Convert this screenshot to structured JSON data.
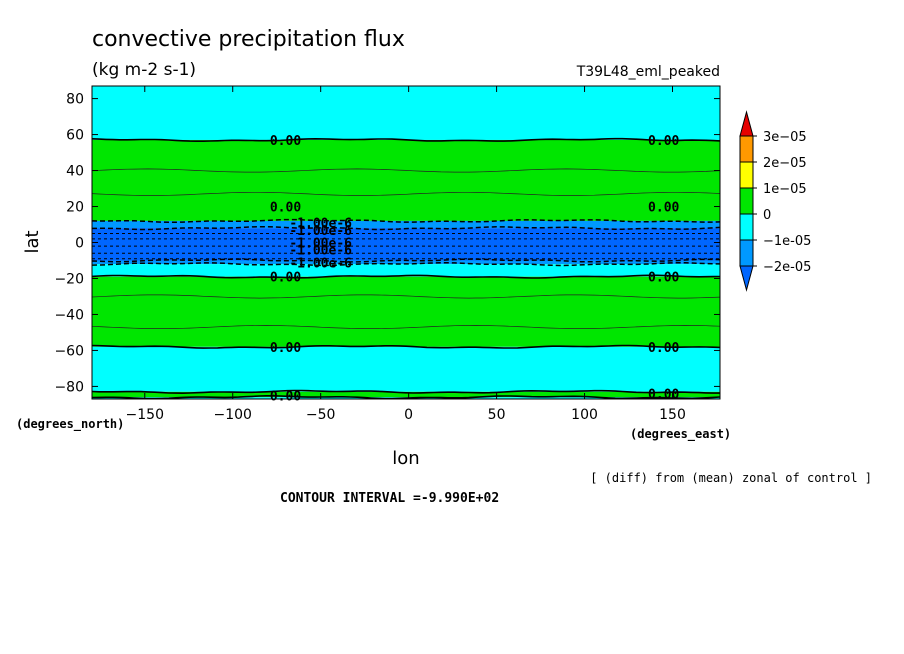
{
  "chart_data": {
    "type": "heatmap",
    "title": "convective precipitation flux",
    "units": "(kg m-2 s-1)",
    "experiment": "T39L48_eml_peaked",
    "xlabel": "lon",
    "ylabel": "lat",
    "x_units": "(degrees_east)",
    "y_units": "(degrees_north)",
    "xlim": [
      -180,
      177
    ],
    "ylim": [
      -87,
      87
    ],
    "x_ticks": [
      -150,
      -100,
      -50,
      0,
      50,
      100,
      150
    ],
    "y_ticks": [
      80,
      60,
      40,
      20,
      0,
      -20,
      -40,
      -60,
      -80
    ],
    "colorbar": {
      "labels": [
        "3e-05",
        "2e-05",
        "1e-05",
        "0",
        "-1e-05",
        "-2e-05"
      ],
      "colors": [
        "#e60000",
        "#ff9900",
        "#ffff00",
        "#00e600",
        "#00ffff",
        "#0099ff",
        "#0066ff"
      ]
    },
    "bands": [
      {
        "lat_min": 57,
        "lat_max": 87,
        "color": "#00ffff"
      },
      {
        "lat_min": 12,
        "lat_max": 57,
        "color": "#00e600"
      },
      {
        "lat_min": 8,
        "lat_max": 12,
        "color": "#0099ff"
      },
      {
        "lat_min": -10,
        "lat_max": 8,
        "color": "#0066ff"
      },
      {
        "lat_min": -12,
        "lat_max": -10,
        "color": "#0099ff"
      },
      {
        "lat_min": -19,
        "lat_max": -12,
        "color": "#00ffff"
      },
      {
        "lat_min": -58,
        "lat_max": -19,
        "color": "#00e600"
      },
      {
        "lat_min": -83,
        "lat_max": -58,
        "color": "#00ffff"
      },
      {
        "lat_min": -86,
        "lat_max": -83,
        "color": "#00e600"
      },
      {
        "lat_min": -87,
        "lat_max": -86,
        "color": "#00ffff"
      }
    ],
    "contour_labels": [
      {
        "lon": -70,
        "lat": 57,
        "text": "0.00"
      },
      {
        "lon": 145,
        "lat": 57,
        "text": "0.00"
      },
      {
        "lon": -70,
        "lat": 20,
        "text": "0.00"
      },
      {
        "lon": 145,
        "lat": 20,
        "text": "0.00"
      },
      {
        "lon": -70,
        "lat": -19,
        "text": "0.00"
      },
      {
        "lon": 145,
        "lat": -19,
        "text": "0.00"
      },
      {
        "lon": -70,
        "lat": -58,
        "text": "0.00"
      },
      {
        "lon": 145,
        "lat": -58,
        "text": "0.00"
      },
      {
        "lon": -70,
        "lat": -85,
        "text": "0.00"
      },
      {
        "lon": 145,
        "lat": -84,
        "text": "0.00"
      },
      {
        "lon": -50,
        "lat": 11,
        "text": "-1.00e-6"
      },
      {
        "lon": -50,
        "lat": 7,
        "text": "-1.00e-6"
      },
      {
        "lon": -50,
        "lat": 0,
        "text": "-1.00e-6"
      },
      {
        "lon": -50,
        "lat": -4,
        "text": "-1.00e-6"
      },
      {
        "lon": -50,
        "lat": -11,
        "text": "-1.00e-6"
      }
    ],
    "legend_position": "right"
  },
  "footer": {
    "contour_interval": "CONTOUR INTERVAL =-9.990E+02",
    "note": "[ (diff) from (mean) zonal of control ]"
  }
}
